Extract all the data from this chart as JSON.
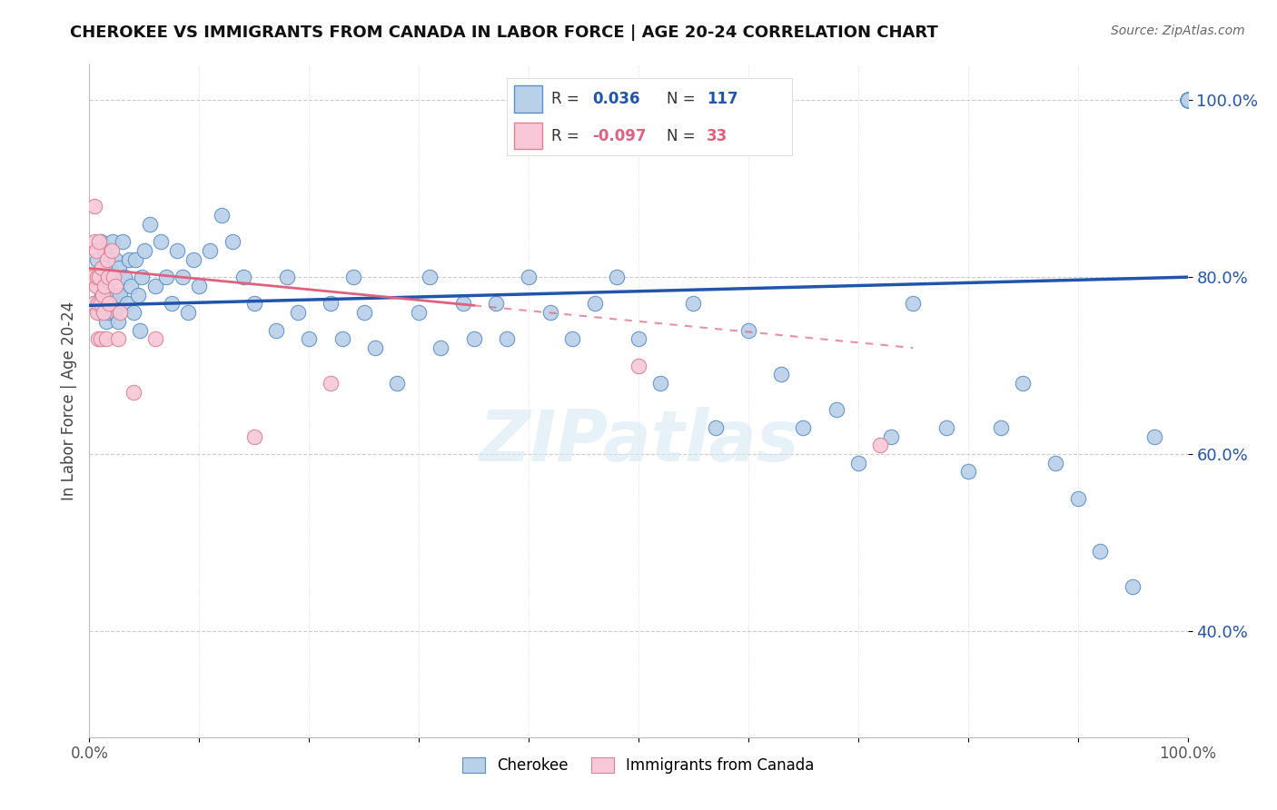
{
  "title": "CHEROKEE VS IMMIGRANTS FROM CANADA IN LABOR FORCE | AGE 20-24 CORRELATION CHART",
  "source": "Source: ZipAtlas.com",
  "ylabel": "In Labor Force | Age 20-24",
  "xlim": [
    0.0,
    1.0
  ],
  "ylim": [
    0.28,
    1.04
  ],
  "yticks": [
    0.4,
    0.6,
    0.8,
    1.0
  ],
  "ytick_labels": [
    "40.0%",
    "60.0%",
    "80.0%",
    "100.0%"
  ],
  "xtick_labels_show": [
    "0.0%",
    "100.0%"
  ],
  "legend_blue_label": "Cherokee",
  "legend_pink_label": "Immigrants from Canada",
  "blue_R": 0.036,
  "blue_N": 117,
  "pink_R": -0.097,
  "pink_N": 33,
  "blue_color": "#b8d0e8",
  "blue_edge_color": "#5b8fc9",
  "blue_line_color": "#2255aa",
  "pink_color": "#f8c8d8",
  "pink_edge_color": "#e08090",
  "pink_line_color": "#e06080",
  "watermark": "ZIPatlas",
  "background_color": "#ffffff",
  "grid_color": "#cccccc",
  "blue_x": [
    0.005,
    0.007,
    0.008,
    0.009,
    0.01,
    0.01,
    0.011,
    0.012,
    0.013,
    0.014,
    0.015,
    0.015,
    0.016,
    0.017,
    0.018,
    0.019,
    0.02,
    0.021,
    0.022,
    0.023,
    0.024,
    0.025,
    0.026,
    0.027,
    0.028,
    0.03,
    0.032,
    0.034,
    0.036,
    0.038,
    0.04,
    0.042,
    0.044,
    0.046,
    0.048,
    0.05,
    0.055,
    0.06,
    0.065,
    0.07,
    0.075,
    0.08,
    0.085,
    0.09,
    0.095,
    0.1,
    0.11,
    0.12,
    0.13,
    0.14,
    0.15,
    0.17,
    0.18,
    0.19,
    0.2,
    0.22,
    0.23,
    0.24,
    0.25,
    0.26,
    0.28,
    0.3,
    0.31,
    0.32,
    0.34,
    0.35,
    0.37,
    0.38,
    0.4,
    0.42,
    0.44,
    0.46,
    0.48,
    0.5,
    0.52,
    0.55,
    0.57,
    0.6,
    0.63,
    0.65,
    0.68,
    0.7,
    0.73,
    0.75,
    0.78,
    0.8,
    0.83,
    0.85,
    0.88,
    0.9,
    0.92,
    0.95,
    0.97,
    1.0,
    1.0,
    1.0,
    1.0,
    1.0,
    1.0,
    1.0,
    1.0,
    1.0,
    1.0,
    1.0,
    1.0,
    1.0,
    1.0,
    1.0,
    1.0,
    1.0,
    1.0,
    1.0,
    1.0,
    1.0,
    1.0,
    1.0,
    1.0
  ],
  "blue_y": [
    0.77,
    0.82,
    0.79,
    0.76,
    0.84,
    0.8,
    0.78,
    0.81,
    0.76,
    0.83,
    0.79,
    0.75,
    0.82,
    0.78,
    0.76,
    0.81,
    0.78,
    0.84,
    0.8,
    0.76,
    0.82,
    0.78,
    0.75,
    0.81,
    0.78,
    0.84,
    0.8,
    0.77,
    0.82,
    0.79,
    0.76,
    0.82,
    0.78,
    0.74,
    0.8,
    0.83,
    0.86,
    0.79,
    0.84,
    0.8,
    0.77,
    0.83,
    0.8,
    0.76,
    0.82,
    0.79,
    0.83,
    0.87,
    0.84,
    0.8,
    0.77,
    0.74,
    0.8,
    0.76,
    0.73,
    0.77,
    0.73,
    0.8,
    0.76,
    0.72,
    0.68,
    0.76,
    0.8,
    0.72,
    0.77,
    0.73,
    0.77,
    0.73,
    0.8,
    0.76,
    0.73,
    0.77,
    0.8,
    0.73,
    0.68,
    0.77,
    0.63,
    0.74,
    0.69,
    0.63,
    0.65,
    0.59,
    0.62,
    0.77,
    0.63,
    0.58,
    0.63,
    0.68,
    0.59,
    0.55,
    0.49,
    0.45,
    0.62,
    1.0,
    1.0,
    1.0,
    1.0,
    1.0,
    1.0,
    1.0,
    1.0,
    1.0,
    1.0,
    1.0,
    1.0,
    1.0,
    1.0,
    1.0,
    1.0,
    1.0,
    1.0,
    1.0,
    1.0,
    1.0,
    1.0,
    1.0,
    1.0
  ],
  "pink_x": [
    0.003,
    0.004,
    0.005,
    0.005,
    0.006,
    0.006,
    0.007,
    0.007,
    0.008,
    0.008,
    0.009,
    0.009,
    0.01,
    0.01,
    0.011,
    0.012,
    0.013,
    0.014,
    0.015,
    0.016,
    0.017,
    0.018,
    0.02,
    0.022,
    0.024,
    0.026,
    0.028,
    0.04,
    0.06,
    0.15,
    0.22,
    0.5,
    0.72
  ],
  "pink_y": [
    0.8,
    0.77,
    0.84,
    0.88,
    0.79,
    0.83,
    0.76,
    0.8,
    0.73,
    0.77,
    0.84,
    0.8,
    0.73,
    0.77,
    0.81,
    0.78,
    0.76,
    0.79,
    0.73,
    0.82,
    0.8,
    0.77,
    0.83,
    0.8,
    0.79,
    0.73,
    0.76,
    0.67,
    0.73,
    0.62,
    0.68,
    0.7,
    0.61
  ],
  "blue_trend_x0": 0.0,
  "blue_trend_y0": 0.768,
  "blue_trend_x1": 1.0,
  "blue_trend_y1": 0.8,
  "pink_trend_x0": 0.0,
  "pink_trend_y0": 0.81,
  "pink_trend_x1": 0.75,
  "pink_trend_y1": 0.72
}
